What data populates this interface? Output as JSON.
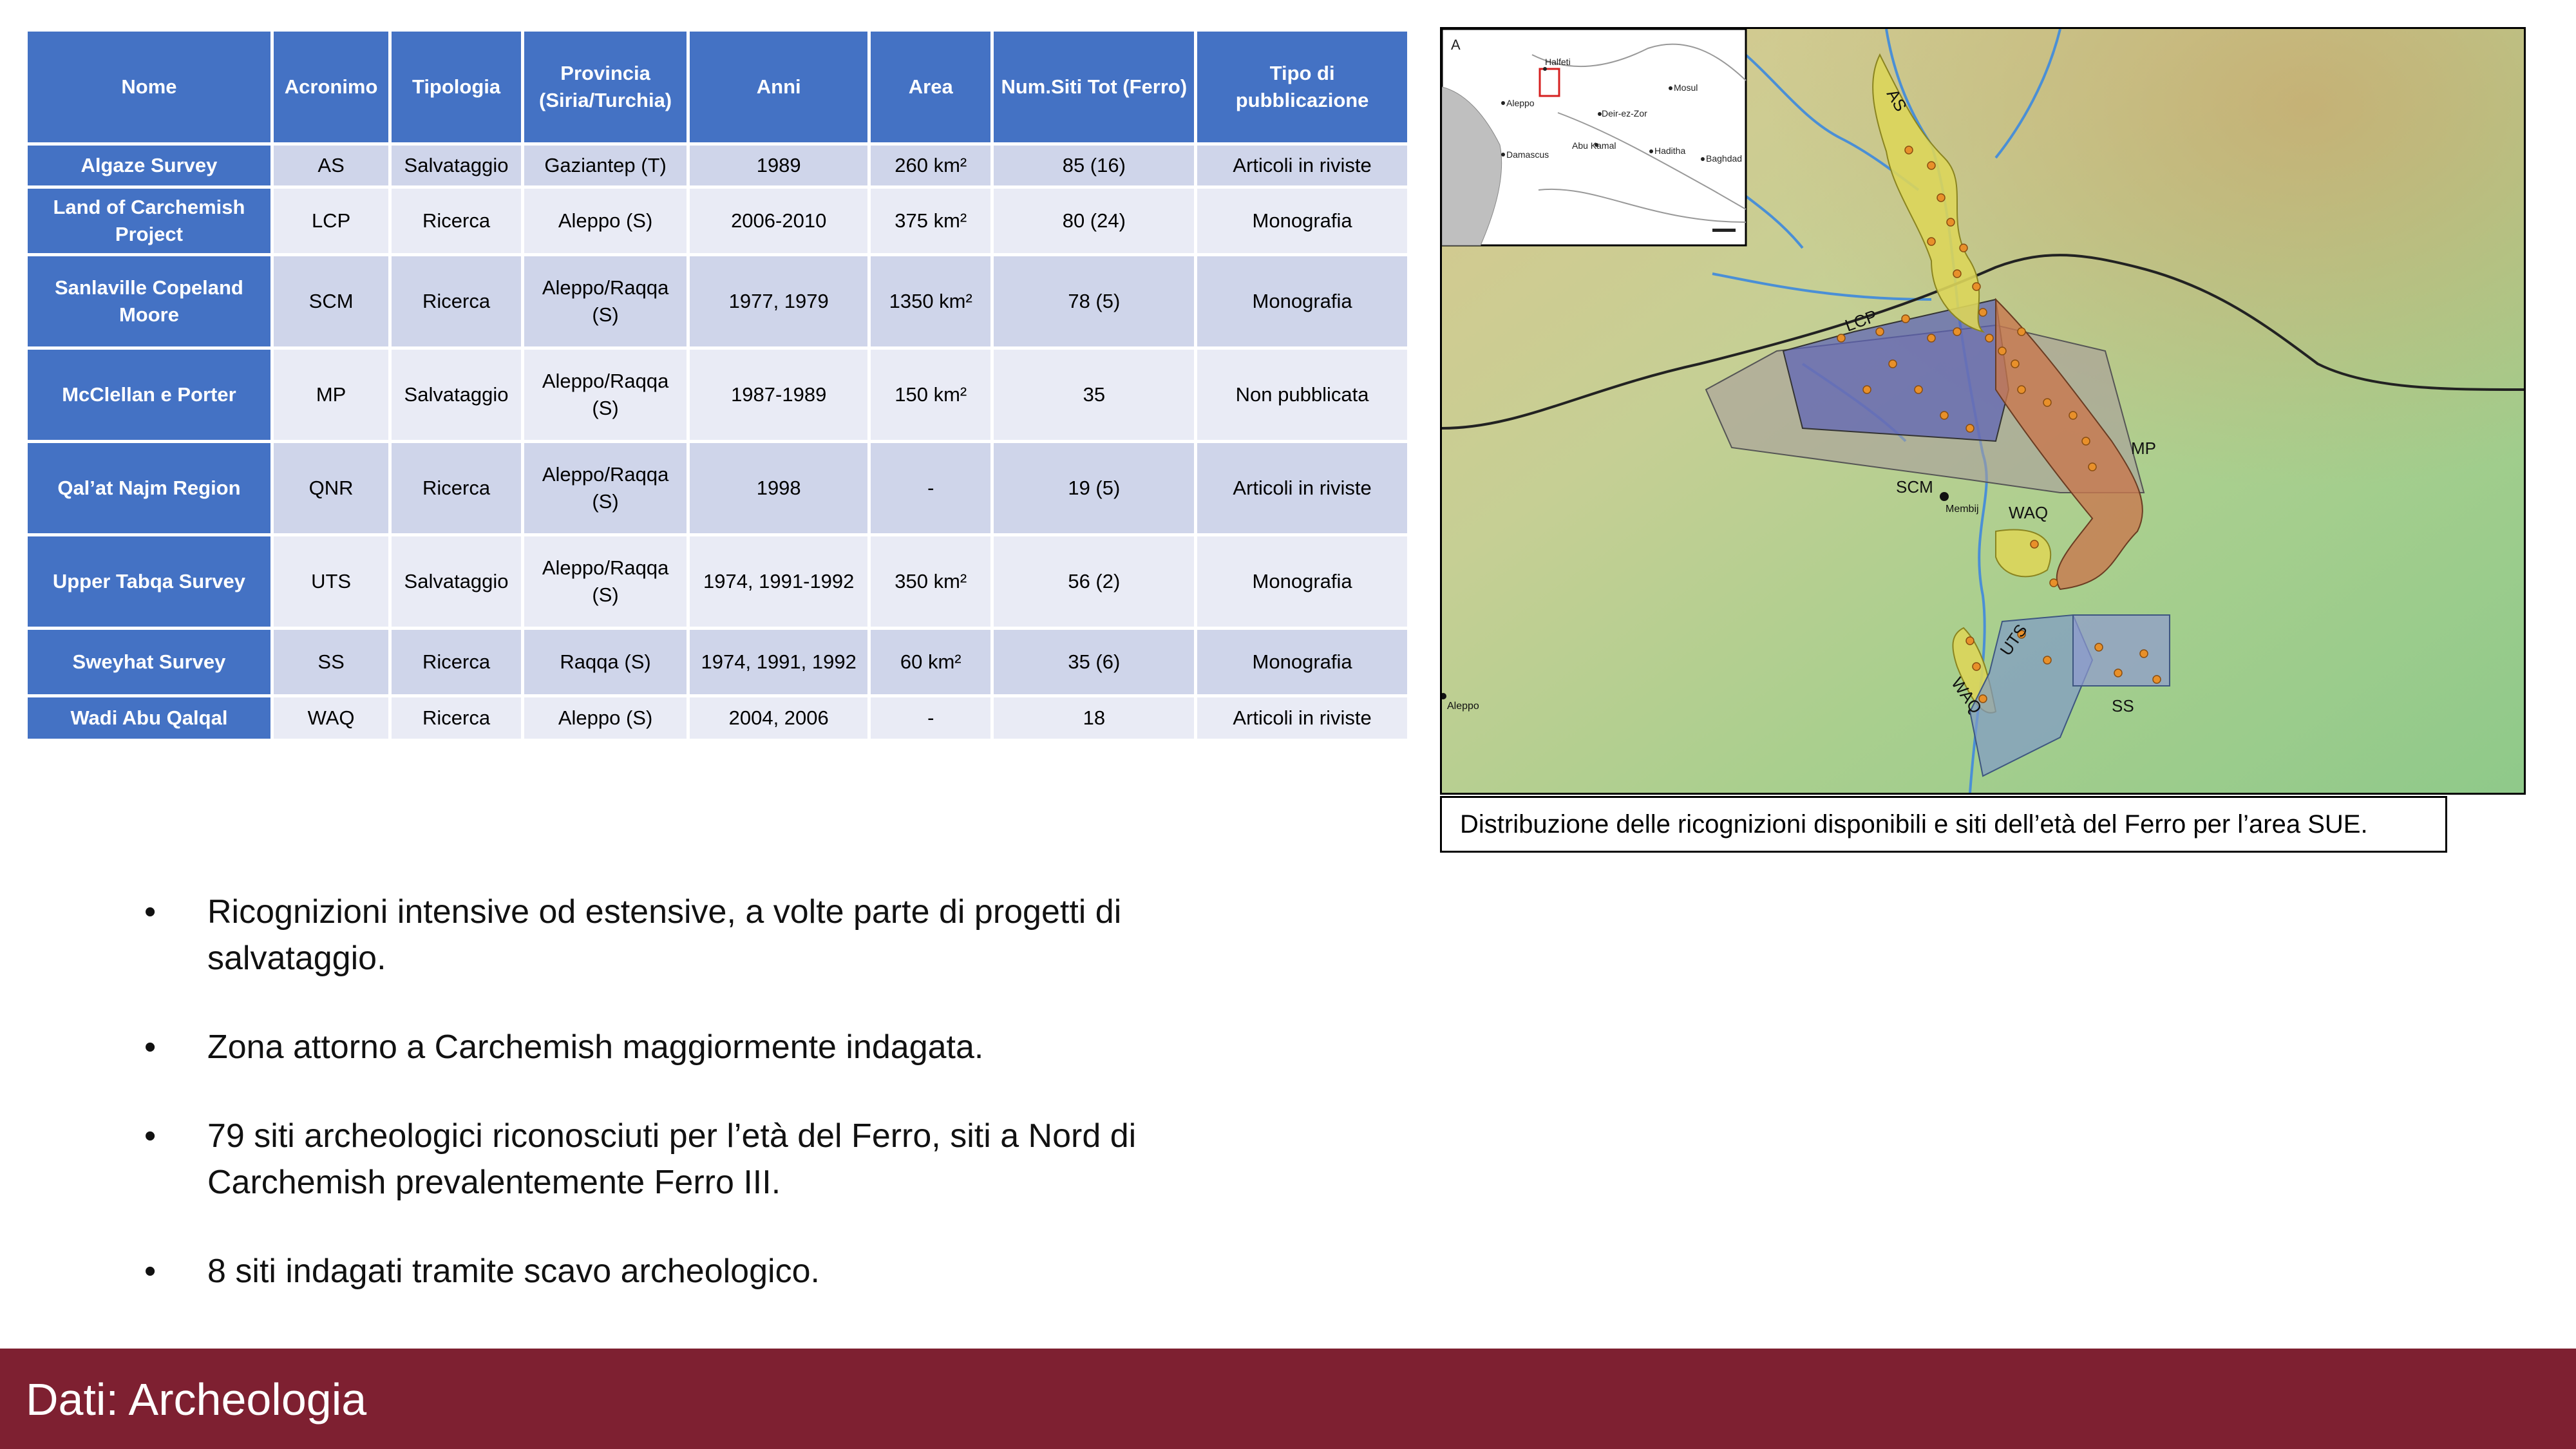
{
  "table": {
    "headers": [
      "Nome",
      "Acronimo",
      "Tipologia",
      "Provincia (Siria/Turchia)",
      "Anni",
      "Area",
      "Num.Siti Tot (Ferro)",
      "Tipo di pubblicazione"
    ],
    "rows": [
      [
        "Algaze Survey",
        "AS",
        "Salvataggio",
        "Gaziantep (T)",
        "1989",
        "260 km²",
        "85 (16)",
        "Articoli in riviste"
      ],
      [
        "Land of Carchemish Project",
        "LCP",
        "Ricerca",
        "Aleppo (S)",
        "2006-2010",
        "375 km²",
        "80 (24)",
        "Monografia"
      ],
      [
        "Sanlaville Copeland Moore",
        "SCM",
        "Ricerca",
        "Aleppo/Raqqa (S)",
        "1977, 1979",
        "1350 km²",
        "78 (5)",
        "Monografia"
      ],
      [
        "McClellan e Porter",
        "MP",
        "Salvataggio",
        "Aleppo/Raqqa (S)",
        "1987-1989",
        "150 km²",
        "35",
        "Non pubblicata"
      ],
      [
        "Qal’at Najm Region",
        "QNR",
        "Ricerca",
        "Aleppo/Raqqa (S)",
        "1998",
        "-",
        "19 (5)",
        "Articoli in riviste"
      ],
      [
        "Upper Tabqa Survey",
        "UTS",
        "Salvataggio",
        "Aleppo/Raqqa (S)",
        "1974, 1991-1992",
        "350 km²",
        "56 (2)",
        "Monografia"
      ],
      [
        "Sweyhat Survey",
        "SS",
        "Ricerca",
        "Raqqa (S)",
        "1974, 1991, 1992",
        "60 km²",
        "35 (6)",
        "Monografia"
      ],
      [
        "Wadi Abu Qalqal",
        "WAQ",
        "Ricerca",
        "Aleppo (S)",
        "2004, 2006",
        "-",
        "18",
        "Articoli in riviste"
      ]
    ]
  },
  "map": {
    "inset": {
      "panel_letter": "A",
      "cities": [
        "Halfeti",
        "Aleppo",
        "Mosul",
        "Deir-ez-Zor",
        "Damascus",
        "Abu Kamal",
        "Haditha",
        "Baghdad"
      ]
    },
    "survey_labels": [
      "AS",
      "LCP",
      "MP",
      "SCM",
      "WAQ",
      "UTS",
      "WAQ",
      "SS"
    ],
    "place_labels": [
      "Membij",
      "Aleppo"
    ],
    "colors": {
      "SCM": "#a89c9c",
      "LCP": "#5a5fb8",
      "MP": "#c8784f",
      "AS": "#dcd55a",
      "UTS": "#7f9ac8",
      "SS": "#8e9ad0",
      "sites": "#e8902a"
    }
  },
  "caption": "Distribuzione delle ricognizioni disponibili e siti dell’età del Ferro per l’area SUE.",
  "bullets": [
    "Ricognizioni intensive od estensive, a volte parte di progetti di salvataggio.",
    "Zona attorno a Carchemish maggiormente indagata.",
    "79 siti archeologici riconosciuti per l’età del Ferro, siti a Nord di Carchemish prevalentemente Ferro III.",
    "8 siti indagati tramite scavo archeologico."
  ],
  "footer": {
    "title": "Dati: Archeologia"
  }
}
